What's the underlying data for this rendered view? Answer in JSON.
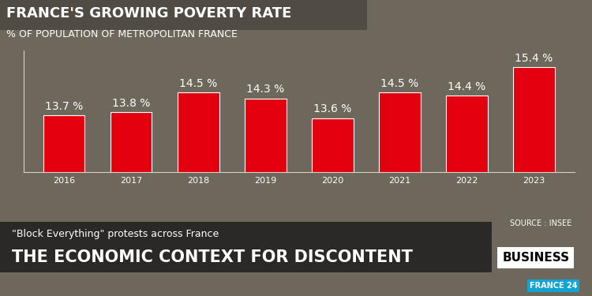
{
  "chart_data": {
    "type": "bar",
    "title": "FRANCE'S GROWING POVERTY RATE",
    "subtitle": "% OF POPULATION OF METROPOLITAN FRANCE",
    "categories": [
      "2016",
      "2017",
      "2018",
      "2019",
      "2020",
      "2021",
      "2022",
      "2023"
    ],
    "values": [
      13.7,
      13.8,
      14.5,
      14.3,
      13.6,
      14.5,
      14.4,
      15.4
    ],
    "value_labels": [
      "13.7 %",
      "13.8 %",
      "14.5 %",
      "14.3 %",
      "13.6 %",
      "14.5 %",
      "14.4 %",
      "15.4 %"
    ],
    "color": "#e3000f",
    "ylim": [
      11.7,
      16.0
    ],
    "yticks": [],
    "data_labels": true,
    "tick_labels": "x",
    "grid": false,
    "annotations": [
      "SOURCE : INSEE",
      "\"Block Everything\" protests across France",
      "THE ECONOMIC CONTEXT FOR DISCONTENT",
      "BUSINESS",
      "FRANCE 24"
    ]
  }
}
